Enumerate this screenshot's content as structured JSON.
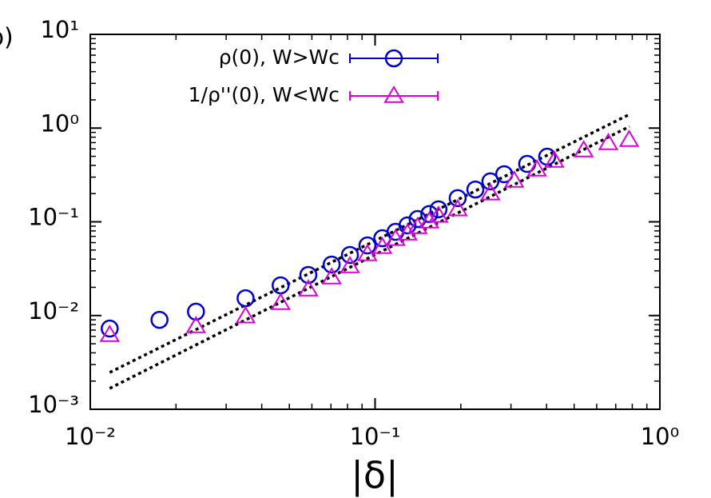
{
  "chart_data": {
    "type": "scatter",
    "panel_label": "b)",
    "xlabel": "|δ|",
    "xscale": "log",
    "yscale": "log",
    "xlim": [
      0.01,
      1
    ],
    "ylim": [
      0.001,
      10
    ],
    "xticks": [
      {
        "value": 0.01,
        "label": "10⁻²"
      },
      {
        "value": 0.1,
        "label": "10⁻¹"
      },
      {
        "value": 1,
        "label": "10⁰"
      }
    ],
    "yticks": [
      {
        "value": 0.001,
        "label": "10⁻³"
      },
      {
        "value": 0.01,
        "label": "10⁻²"
      },
      {
        "value": 0.1,
        "label": "10⁻¹"
      },
      {
        "value": 1,
        "label": "10⁰"
      },
      {
        "value": 10,
        "label": "10¹"
      }
    ],
    "legend": "upper left",
    "series": [
      {
        "name": "ρ(0), W>Wc",
        "color": "#0000cc",
        "marker": "circle",
        "x": [
          0.0117,
          0.0175,
          0.0235,
          0.0351,
          0.0466,
          0.0583,
          0.0704,
          0.0816,
          0.094,
          0.106,
          0.118,
          0.13,
          0.141,
          0.155,
          0.167,
          0.195,
          0.225,
          0.254,
          0.284,
          0.342,
          0.402
        ],
        "values": [
          0.00726,
          0.009,
          0.011,
          0.0153,
          0.021,
          0.0271,
          0.035,
          0.0443,
          0.056,
          0.0668,
          0.0782,
          0.0916,
          0.107,
          0.121,
          0.136,
          0.179,
          0.221,
          0.27,
          0.322,
          0.415,
          0.495
        ]
      },
      {
        "name": "1/ρ''(0), W<Wc",
        "color": "#dd00dd",
        "marker": "triangle",
        "x": [
          0.0117,
          0.0235,
          0.0351,
          0.0466,
          0.0583,
          0.0704,
          0.0816,
          0.094,
          0.106,
          0.118,
          0.13,
          0.141,
          0.155,
          0.167,
          0.195,
          0.254,
          0.308,
          0.37,
          0.426,
          0.54,
          0.659,
          0.78
        ],
        "values": [
          0.0062,
          0.0077,
          0.0098,
          0.0136,
          0.019,
          0.0255,
          0.0336,
          0.0452,
          0.0539,
          0.0656,
          0.0752,
          0.088,
          0.101,
          0.116,
          0.136,
          0.201,
          0.275,
          0.362,
          0.449,
          0.579,
          0.692,
          0.748
        ]
      }
    ],
    "fit_lines": [
      {
        "color": "#000000",
        "x": [
          0.0117,
          0.782
        ],
        "values": [
          0.00247,
          1.4
        ]
      },
      {
        "color": "#000000",
        "x": [
          0.0117,
          0.782
        ],
        "values": [
          0.00167,
          1.04
        ]
      }
    ]
  }
}
